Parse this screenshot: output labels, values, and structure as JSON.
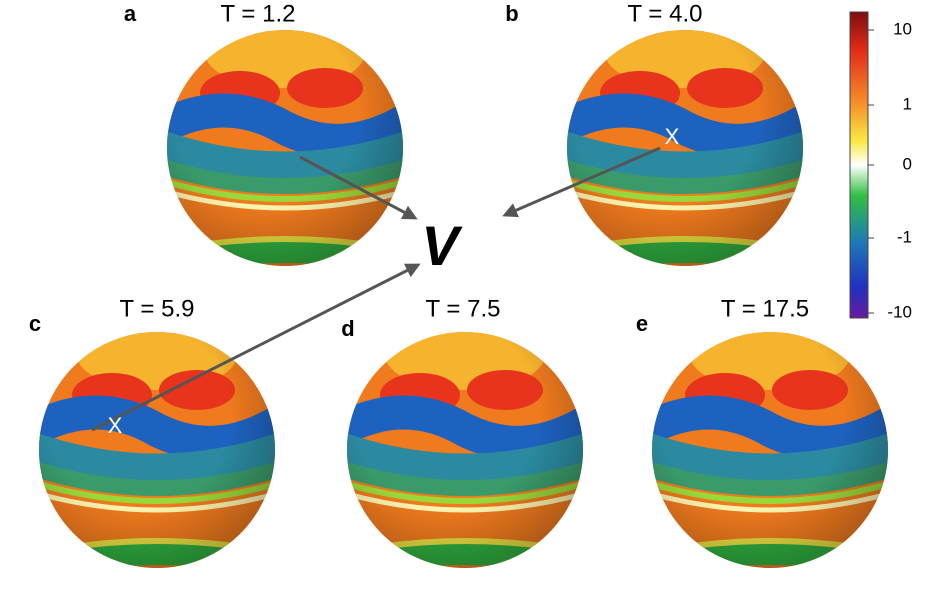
{
  "panels": [
    {
      "label": "a",
      "title": "T = 1.2"
    },
    {
      "label": "b",
      "title": "T = 4.0"
    },
    {
      "label": "c",
      "title": "T = 5.9"
    },
    {
      "label": "d",
      "title": "T = 7.5"
    },
    {
      "label": "e",
      "title": "T = 17.5"
    }
  ],
  "center_label": "V",
  "markers": [
    "X",
    "X"
  ],
  "colorbar": {
    "ticks": [
      "10",
      "1",
      "0",
      "-1",
      "-10"
    ]
  }
}
